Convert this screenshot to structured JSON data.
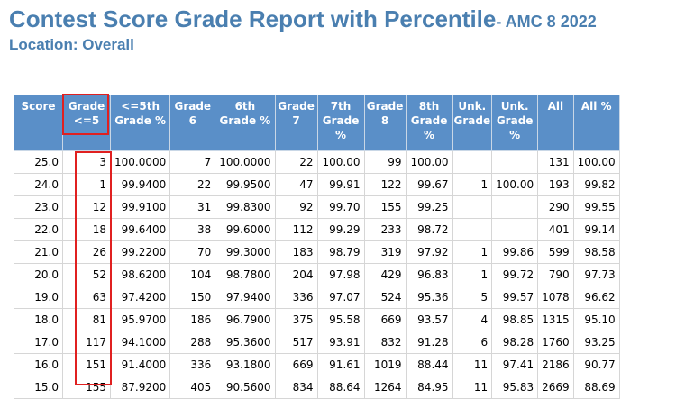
{
  "header": {
    "title": "Contest Score Grade Report with Percentile",
    "subtitle": "- AMC 8  2022",
    "location": "Location: Overall"
  },
  "table": {
    "columns": [
      "Score",
      "Grade <=5",
      "<=5th Grade %",
      "Grade 6",
      "6th Grade %",
      "Grade 7",
      "7th Grade %",
      "Grade 8",
      "8th Grade %",
      "Unk. Grade",
      "Unk. Grade %",
      "All",
      "All %"
    ],
    "rows": [
      [
        "25.0",
        "3",
        "100.0000",
        "7",
        "100.0000",
        "22",
        "100.00",
        "99",
        "100.00",
        "",
        "",
        "131",
        "100.00"
      ],
      [
        "24.0",
        "1",
        "99.9400",
        "22",
        "99.9500",
        "47",
        "99.91",
        "122",
        "99.67",
        "1",
        "100.00",
        "193",
        "99.82"
      ],
      [
        "23.0",
        "12",
        "99.9100",
        "31",
        "99.8300",
        "92",
        "99.70",
        "155",
        "99.25",
        "",
        "",
        "290",
        "99.55"
      ],
      [
        "22.0",
        "18",
        "99.6400",
        "38",
        "99.6000",
        "112",
        "99.29",
        "233",
        "98.72",
        "",
        "",
        "401",
        "99.14"
      ],
      [
        "21.0",
        "26",
        "99.2200",
        "70",
        "99.3000",
        "183",
        "98.79",
        "319",
        "97.92",
        "1",
        "99.86",
        "599",
        "98.58"
      ],
      [
        "20.0",
        "52",
        "98.6200",
        "104",
        "98.7800",
        "204",
        "97.98",
        "429",
        "96.83",
        "1",
        "99.72",
        "790",
        "97.73"
      ],
      [
        "19.0",
        "63",
        "97.4200",
        "150",
        "97.9400",
        "336",
        "97.07",
        "524",
        "95.36",
        "5",
        "99.57",
        "1078",
        "96.62"
      ],
      [
        "18.0",
        "81",
        "95.9700",
        "186",
        "96.7900",
        "375",
        "95.58",
        "669",
        "93.57",
        "4",
        "98.85",
        "1315",
        "95.10"
      ],
      [
        "17.0",
        "117",
        "94.1000",
        "288",
        "95.3600",
        "517",
        "93.91",
        "832",
        "91.28",
        "6",
        "98.28",
        "1760",
        "93.25"
      ],
      [
        "16.0",
        "151",
        "91.4000",
        "336",
        "93.1800",
        "669",
        "91.61",
        "1019",
        "88.44",
        "11",
        "97.41",
        "2186",
        "90.77"
      ],
      [
        "15.0",
        "155",
        "87.9200",
        "405",
        "90.5600",
        "834",
        "88.64",
        "1264",
        "84.95",
        "11",
        "95.83",
        "2669",
        "88.69"
      ]
    ]
  },
  "colors": {
    "title": "#4a7fb0",
    "header_bg": "#5a8fc8",
    "highlight": "#e02020"
  }
}
